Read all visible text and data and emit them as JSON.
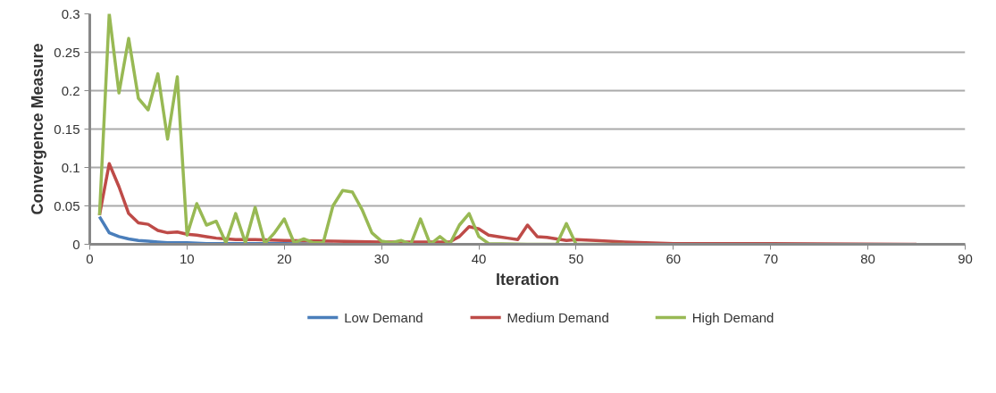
{
  "chart_data": {
    "type": "line",
    "xlabel": "Iteration",
    "ylabel": "Convergence Measure",
    "xlim": [
      0,
      90
    ],
    "xticks": [
      0,
      10,
      20,
      30,
      40,
      50,
      60,
      70,
      80,
      90
    ],
    "ylim": [
      0,
      0.3
    ],
    "yticks": [
      0,
      0.05,
      0.1,
      0.15,
      0.2,
      0.25,
      0.3
    ],
    "grid": "y",
    "legend": "bottom",
    "line_style": "solid",
    "series": [
      {
        "name": "Low Demand",
        "color": "#4a7ebb",
        "x": [
          1,
          2,
          3,
          4,
          5,
          6,
          7,
          8,
          10,
          12,
          15,
          20,
          25
        ],
        "values": [
          0.036,
          0.015,
          0.01,
          0.007,
          0.005,
          0.004,
          0.003,
          0.002,
          0.002,
          0.001,
          0.001,
          0.001,
          0
        ]
      },
      {
        "name": "Medium Demand",
        "color": "#be4b48",
        "x": [
          1,
          2,
          3,
          4,
          5,
          6,
          7,
          8,
          9,
          10,
          11,
          12,
          13,
          14,
          15,
          17,
          20,
          25,
          30,
          37,
          38,
          39,
          40,
          41,
          42,
          43,
          44,
          45,
          46,
          47,
          48,
          49,
          50,
          52,
          55,
          60,
          70,
          85
        ],
        "values": [
          0.038,
          0.105,
          0.075,
          0.04,
          0.028,
          0.026,
          0.018,
          0.015,
          0.016,
          0.013,
          0.012,
          0.01,
          0.008,
          0.007,
          0.006,
          0.006,
          0.005,
          0.004,
          0.003,
          0.003,
          0.01,
          0.023,
          0.02,
          0.012,
          0.01,
          0.008,
          0.006,
          0.025,
          0.01,
          0.009,
          0.007,
          0.005,
          0.006,
          0.005,
          0.003,
          0.001,
          0.001,
          0
        ]
      },
      {
        "name": "High Demand",
        "color": "#98b954",
        "x": [
          1,
          2,
          3,
          4,
          5,
          6,
          7,
          8,
          9,
          10,
          11,
          12,
          13,
          14,
          15,
          16,
          17,
          18,
          19,
          20,
          21,
          22,
          23,
          24,
          25,
          26,
          27,
          28,
          29,
          30,
          31,
          32,
          33,
          34,
          35,
          36,
          37,
          38,
          39,
          40,
          41,
          45,
          48,
          49,
          50,
          55
        ],
        "values": [
          0.038,
          0.3,
          0.197,
          0.268,
          0.19,
          0.175,
          0.222,
          0.137,
          0.218,
          0.012,
          0.053,
          0.025,
          0.03,
          0.002,
          0.04,
          0.002,
          0.048,
          0.001,
          0.015,
          0.033,
          0.002,
          0.007,
          0.002,
          0.002,
          0.05,
          0.07,
          0.068,
          0.045,
          0.015,
          0.004,
          0.002,
          0.005,
          0,
          0.033,
          0,
          0.01,
          0,
          0.025,
          0.04,
          0.01,
          0.001,
          0,
          0,
          0.027,
          0,
          0
        ]
      }
    ]
  }
}
